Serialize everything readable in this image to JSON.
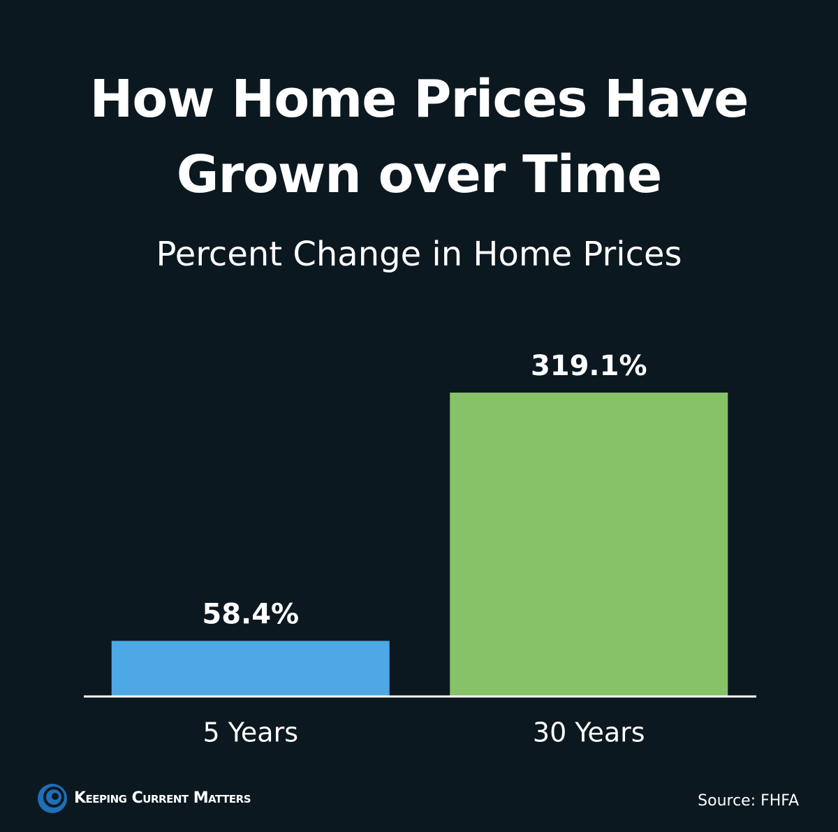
{
  "chart_data": {
    "type": "bar",
    "title": "How Home Prices Have Grown over Time",
    "subtitle": "Percent Change in Home Prices",
    "categories": [
      "5 Years",
      "30 Years"
    ],
    "values": [
      58.4,
      319.1
    ],
    "value_labels": [
      "58.4%",
      "319.1%"
    ],
    "colors": [
      "#4ea8e6",
      "#88c268"
    ],
    "brand": "Keeping Current Matters",
    "source": "Source: FHFA"
  }
}
